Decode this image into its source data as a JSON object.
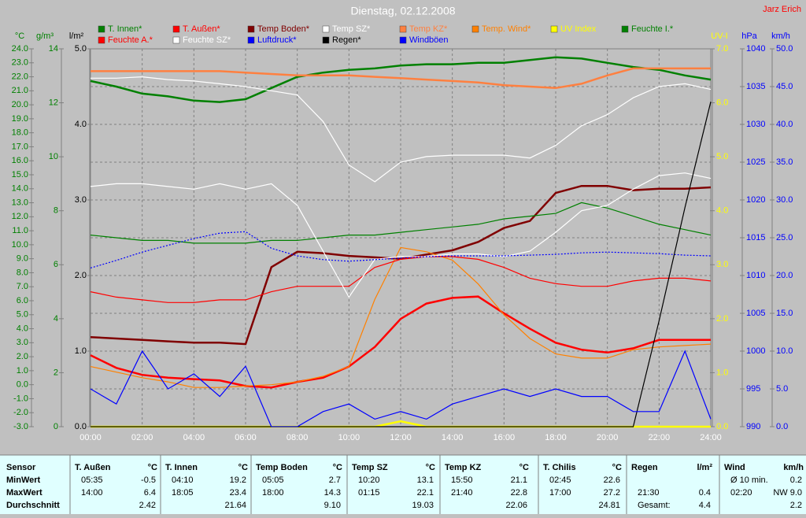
{
  "chart_data": {
    "type": "line",
    "title": "Dienstag, 02.12.2008",
    "author": "Jarz Erich",
    "grid": true,
    "x": [
      0,
      1,
      2,
      3,
      4,
      5,
      6,
      7,
      8,
      9,
      10,
      11,
      12,
      13,
      14,
      15,
      16,
      17,
      18,
      19,
      20,
      21,
      22,
      23,
      24
    ],
    "xlim": [
      0,
      24
    ],
    "xticks": [
      {
        "value": 0,
        "label": "00:00"
      },
      {
        "value": 2,
        "label": "02:00"
      },
      {
        "value": 4,
        "label": "04:00"
      },
      {
        "value": 6,
        "label": "06:00"
      },
      {
        "value": 8,
        "label": "08:00"
      },
      {
        "value": 10,
        "label": "10:00"
      },
      {
        "value": 12,
        "label": "12:00"
      },
      {
        "value": 14,
        "label": "14:00"
      },
      {
        "value": 16,
        "label": "16:00"
      },
      {
        "value": 18,
        "label": "18:00"
      },
      {
        "value": 20,
        "label": "20:00"
      },
      {
        "value": 22,
        "label": "22:00"
      },
      {
        "value": 24,
        "label": "24:00"
      }
    ],
    "axes": [
      {
        "label": "°C",
        "side": "left",
        "color": "#008000",
        "lim": [
          -3,
          24
        ],
        "ticks": [
          {
            "value": -3,
            "label": "-3.0"
          },
          {
            "value": -2,
            "label": "-2.0"
          },
          {
            "value": -1,
            "label": "-1.0"
          },
          {
            "value": 0,
            "label": "0.0"
          },
          {
            "value": 1,
            "label": "1.0"
          },
          {
            "value": 2,
            "label": "2.0"
          },
          {
            "value": 3,
            "label": "3.0"
          },
          {
            "value": 4,
            "label": "4.0"
          },
          {
            "value": 5,
            "label": "5.0"
          },
          {
            "value": 6,
            "label": "6.0"
          },
          {
            "value": 7,
            "label": "7.0"
          },
          {
            "value": 8,
            "label": "8.0"
          },
          {
            "value": 9,
            "label": "9.0"
          },
          {
            "value": 10,
            "label": "10.0"
          },
          {
            "value": 11,
            "label": "11.0"
          },
          {
            "value": 12,
            "label": "12.0"
          },
          {
            "value": 13,
            "label": "13.0"
          },
          {
            "value": 14,
            "label": "14.0"
          },
          {
            "value": 15,
            "label": "15.0"
          },
          {
            "value": 16,
            "label": "16.0"
          },
          {
            "value": 17,
            "label": "17.0"
          },
          {
            "value": 18,
            "label": "18.0"
          },
          {
            "value": 19,
            "label": "19.0"
          },
          {
            "value": 20,
            "label": "20.0"
          },
          {
            "value": 21,
            "label": "21.0"
          },
          {
            "value": 22,
            "label": "22.0"
          },
          {
            "value": 23,
            "label": "23.0"
          },
          {
            "value": 24,
            "label": "24.0"
          }
        ]
      },
      {
        "label": "g/m³",
        "side": "left",
        "color": "#008000",
        "lim": [
          0,
          14
        ],
        "ticks": [
          0,
          2,
          4,
          6,
          8,
          10,
          12,
          14
        ]
      },
      {
        "label": "l/m²",
        "side": "left",
        "color": "#000000",
        "lim": [
          0,
          5
        ],
        "ticks": [
          {
            "value": 0,
            "label": "0.0"
          },
          {
            "value": 1,
            "label": "1.0"
          },
          {
            "value": 2,
            "label": "2.0"
          },
          {
            "value": 3,
            "label": "3.0"
          },
          {
            "value": 4,
            "label": "4.0"
          },
          {
            "value": 5,
            "label": "5.0"
          }
        ]
      },
      {
        "label": "UV-I",
        "side": "right",
        "color": "#ffff00",
        "lim": [
          0,
          7
        ],
        "ticks": [
          {
            "value": 0,
            "label": "0.0"
          },
          {
            "value": 1,
            "label": "1.0"
          },
          {
            "value": 2,
            "label": "2.0"
          },
          {
            "value": 3,
            "label": "3.0"
          },
          {
            "value": 4,
            "label": "4.0"
          },
          {
            "value": 5,
            "label": "5.0"
          },
          {
            "value": 6,
            "label": "6.0"
          },
          {
            "value": 7,
            "label": "7.0"
          }
        ]
      },
      {
        "label": "hPa",
        "side": "right",
        "color": "#0000ff",
        "lim": [
          990,
          1040
        ],
        "ticks": [
          990,
          995,
          1000,
          1005,
          1010,
          1015,
          1020,
          1025,
          1030,
          1035,
          1040
        ]
      },
      {
        "label": "km/h",
        "side": "right",
        "color": "#0000ff",
        "lim": [
          0,
          50
        ],
        "ticks": [
          {
            "value": 0,
            "label": "0.0"
          },
          {
            "value": 5,
            "label": "5.0"
          },
          {
            "value": 10,
            "label": "10.0"
          },
          {
            "value": 15,
            "label": "15.0"
          },
          {
            "value": 20,
            "label": "20.0"
          },
          {
            "value": 25,
            "label": "25.0"
          },
          {
            "value": 30,
            "label": "30.0"
          },
          {
            "value": 35,
            "label": "35.0"
          },
          {
            "value": 40,
            "label": "40.0"
          },
          {
            "value": 45,
            "label": "45.0"
          },
          {
            "value": 50,
            "label": "50.0"
          }
        ]
      }
    ],
    "series": [
      {
        "name": "T. Innen*",
        "color": "#008000",
        "axis": 0,
        "line": "thick",
        "values": [
          21.7,
          21.3,
          20.8,
          20.6,
          20.3,
          20.2,
          20.4,
          21.2,
          22.0,
          22.3,
          22.5,
          22.6,
          22.8,
          22.9,
          22.9,
          23.0,
          23.0,
          23.2,
          23.4,
          23.3,
          23.0,
          22.7,
          22.5,
          22.1,
          21.8
        ]
      },
      {
        "name": "T. Außen*",
        "color": "#ff0000",
        "axis": 0,
        "line": "thick",
        "values": [
          2.1,
          1.2,
          0.7,
          0.5,
          0.4,
          0.3,
          -0.1,
          -0.2,
          0.2,
          0.5,
          1.3,
          2.7,
          4.7,
          5.8,
          6.2,
          6.3,
          5.1,
          4.0,
          3.0,
          2.5,
          2.3,
          2.6,
          3.2,
          3.2,
          3.2
        ]
      },
      {
        "name": "Temp Boden*",
        "color": "#800000",
        "axis": 0,
        "line": "thick",
        "values": [
          3.4,
          3.3,
          3.2,
          3.1,
          3.0,
          3.0,
          2.9,
          8.4,
          9.5,
          9.4,
          9.2,
          9.1,
          9.0,
          9.3,
          9.6,
          10.2,
          11.2,
          11.7,
          13.7,
          14.2,
          14.2,
          13.9,
          14.0,
          14.0,
          14.1
        ]
      },
      {
        "name": "Temp SZ*",
        "color": "#ffffff",
        "axis": 0,
        "line": "normal",
        "values": [
          21.9,
          21.9,
          22.0,
          21.8,
          21.7,
          21.5,
          21.3,
          21.0,
          20.7,
          18.8,
          15.7,
          14.5,
          15.9,
          16.3,
          16.4,
          16.4,
          16.4,
          16.2,
          17.1,
          18.5,
          19.3,
          20.5,
          21.3,
          21.5,
          21.1
        ]
      },
      {
        "name": "Temp KZ*",
        "color": "#ff8040",
        "axis": 0,
        "line": "thick",
        "values": [
          22.4,
          22.4,
          22.4,
          22.4,
          22.4,
          22.4,
          22.3,
          22.2,
          22.1,
          22.1,
          22.1,
          22.0,
          21.9,
          21.8,
          21.7,
          21.6,
          21.4,
          21.3,
          21.2,
          21.5,
          22.1,
          22.6,
          22.6,
          22.6,
          22.6
        ]
      },
      {
        "name": "Temp. Wind*",
        "color": "#ff8000",
        "axis": 0,
        "line": "normal",
        "values": [
          1.3,
          0.9,
          0.5,
          0.2,
          -0.2,
          -0.2,
          -0.1,
          0.0,
          0.2,
          0.6,
          1.3,
          6.1,
          9.8,
          9.5,
          8.9,
          7.2,
          5.0,
          3.3,
          2.2,
          1.9,
          1.9,
          2.5,
          2.7,
          2.8,
          2.9
        ]
      },
      {
        "name": "UV Index",
        "color": "#ffff00",
        "axis": 3,
        "line": "thick",
        "values": [
          0,
          0,
          0,
          0,
          0,
          0,
          0,
          0,
          0,
          0,
          0,
          0,
          0.1,
          0,
          0,
          0,
          0,
          0,
          0,
          0,
          0,
          0,
          0,
          0,
          0
        ]
      },
      {
        "name": "Feuchte I.*",
        "color": "#008000",
        "axis": 1,
        "line": "normal",
        "values": [
          7.1,
          7.0,
          6.9,
          6.9,
          6.8,
          6.8,
          6.8,
          6.9,
          6.9,
          7.0,
          7.1,
          7.1,
          7.2,
          7.3,
          7.4,
          7.5,
          7.7,
          7.8,
          7.9,
          8.3,
          8.1,
          7.8,
          7.5,
          7.3,
          7.1
        ]
      },
      {
        "name": "Feuchte A.*",
        "color": "#ff0000",
        "axis": 1,
        "line": "normal",
        "values": [
          5.0,
          4.8,
          4.7,
          4.6,
          4.6,
          4.7,
          4.7,
          5.0,
          5.2,
          5.2,
          5.2,
          5.9,
          6.2,
          6.3,
          6.3,
          6.2,
          5.9,
          5.5,
          5.3,
          5.2,
          5.2,
          5.4,
          5.5,
          5.5,
          5.4
        ]
      },
      {
        "name": "Feuchte SZ*",
        "color": "#ffffff",
        "axis": 1,
        "line": "normal",
        "values": [
          8.9,
          9.0,
          9.0,
          8.9,
          8.8,
          9.0,
          8.8,
          9.0,
          8.2,
          6.5,
          4.8,
          6.2,
          6.3,
          6.3,
          6.4,
          6.4,
          6.3,
          6.5,
          7.2,
          8.0,
          8.2,
          8.8,
          9.3,
          9.4,
          9.2
        ]
      },
      {
        "name": "Luftdruck*",
        "color": "#0000ff",
        "axis": 4,
        "line": "dotted",
        "values": [
          1011.0,
          1012.0,
          1013.1,
          1014.0,
          1014.9,
          1015.6,
          1015.8,
          1013.6,
          1012.6,
          1012.1,
          1011.9,
          1012.1,
          1012.3,
          1012.5,
          1012.6,
          1012.6,
          1012.6,
          1012.7,
          1012.8,
          1013.0,
          1013.1,
          1013.0,
          1012.9,
          1012.7,
          1012.6
        ]
      },
      {
        "name": "Regen*",
        "color": "#000000",
        "axis": 2,
        "line": "normal",
        "values": [
          0,
          0,
          0,
          0,
          0,
          0,
          0,
          0,
          0,
          0,
          0,
          0,
          0,
          0,
          0,
          0,
          0,
          0,
          0,
          0,
          0,
          0,
          1.4,
          2.9,
          4.3
        ]
      },
      {
        "name": "Windböen",
        "color": "#0000ff",
        "axis": 5,
        "line": "normal",
        "values": [
          5,
          3,
          10,
          5,
          7,
          4,
          8,
          0,
          0,
          2,
          3,
          1,
          2,
          1,
          3,
          4,
          5,
          4,
          5,
          4,
          4,
          2,
          2,
          10,
          1
        ]
      }
    ]
  },
  "table": {
    "corner": "Sensor",
    "columns": [
      {
        "name": "T. Außen",
        "unit": "°C"
      },
      {
        "name": "T. Innen",
        "unit": "°C"
      },
      {
        "name": "Temp Boden",
        "unit": "°C"
      },
      {
        "name": "Temp SZ",
        "unit": "°C"
      },
      {
        "name": "Temp KZ",
        "unit": "°C"
      },
      {
        "name": "T. Chilis",
        "unit": "°C"
      },
      {
        "name": "Regen",
        "unit": "l/m²"
      },
      {
        "name": "Wind",
        "unit": "km/h"
      }
    ],
    "rows": [
      {
        "label": "MinWert",
        "cells": [
          {
            "key": "05:35",
            "value": "-0.5"
          },
          {
            "key": "04:10",
            "value": "19.2"
          },
          {
            "key": "05:05",
            "value": "2.7"
          },
          {
            "key": "10:20",
            "value": "13.1"
          },
          {
            "key": "15:50",
            "value": "21.1"
          },
          {
            "key": "02:45",
            "value": "22.6"
          },
          {},
          {
            "key": "Ø 10 min.",
            "value": "0.2"
          }
        ]
      },
      {
        "label": "MaxWert",
        "cells": [
          {
            "key": "14:00",
            "value": "6.4"
          },
          {
            "key": "18:05",
            "value": "23.4"
          },
          {
            "key": "18:00",
            "value": "14.3"
          },
          {
            "key": "01:15",
            "value": "22.1"
          },
          {
            "key": "21:40",
            "value": "22.8"
          },
          {
            "key": "17:00",
            "value": "27.2"
          },
          {
            "key": "21:30",
            "value": "0.4"
          },
          {
            "key": "02:20",
            "value": "NW 9.0"
          }
        ]
      },
      {
        "label": "Durchschnitt",
        "cells": [
          {
            "value": "2.42"
          },
          {
            "value": "21.64"
          },
          {
            "value": "9.10"
          },
          {
            "value": "19.03"
          },
          {
            "value": "22.06"
          },
          {
            "value": "24.81"
          },
          {
            "key": "Gesamt:",
            "value": "4.4"
          },
          {
            "value": "2.2"
          }
        ]
      }
    ]
  }
}
